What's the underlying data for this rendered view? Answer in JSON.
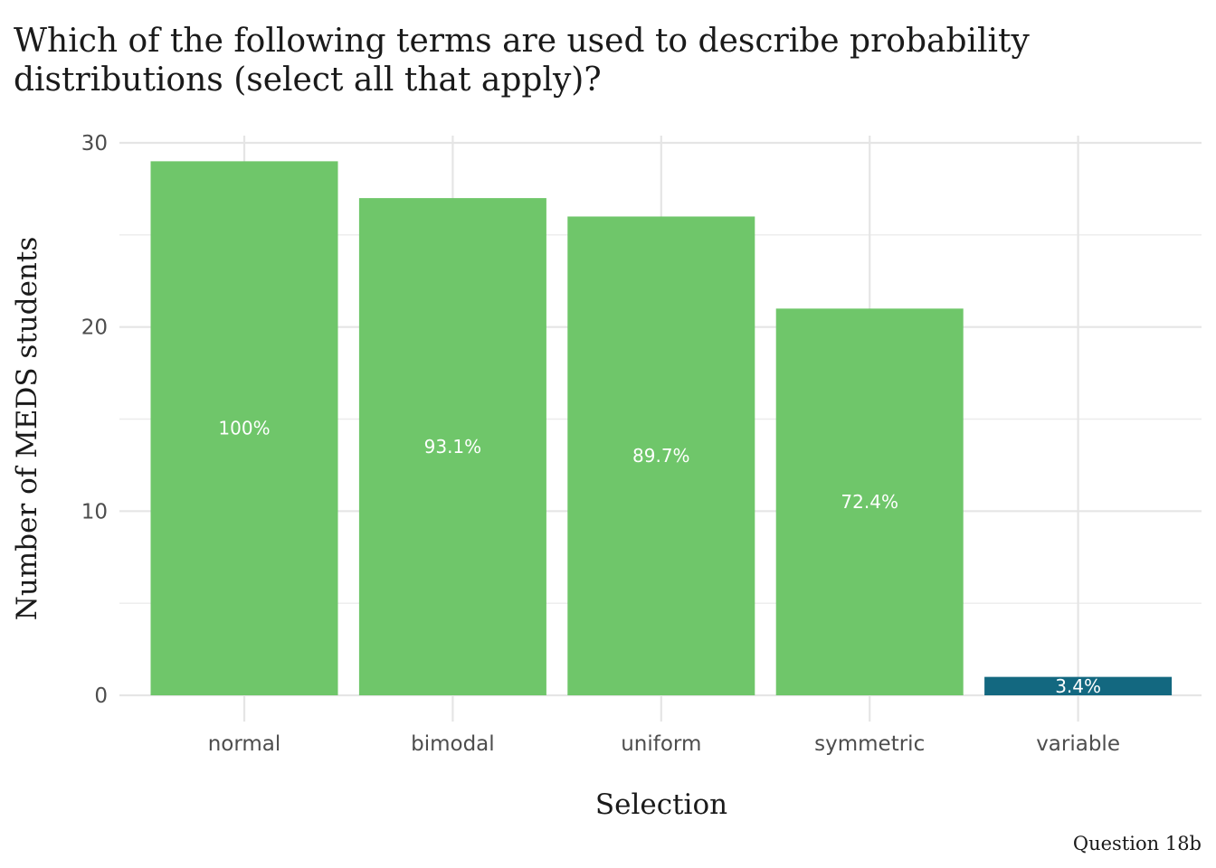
{
  "chart_data": {
    "type": "bar",
    "title_lines": [
      "Which of the following terms are used to describe probability",
      "distributions (select all that apply)?"
    ],
    "xlabel": "Selection",
    "ylabel": "Number of MEDS students",
    "caption": "Question 18b",
    "categories": [
      "normal",
      "bimodal",
      "uniform",
      "symmetric",
      "variable"
    ],
    "values": [
      29,
      27,
      26,
      21,
      1
    ],
    "labels": [
      "100%",
      "93.1%",
      "89.7%",
      "72.4%",
      "3.4%"
    ],
    "colors": [
      "#6fc66a",
      "#6fc66a",
      "#6fc66a",
      "#6fc66a",
      "#136880"
    ],
    "ylim": [
      0,
      30
    ],
    "yticks": [
      0,
      10,
      20,
      30
    ],
    "grid": true,
    "legend": "none"
  }
}
